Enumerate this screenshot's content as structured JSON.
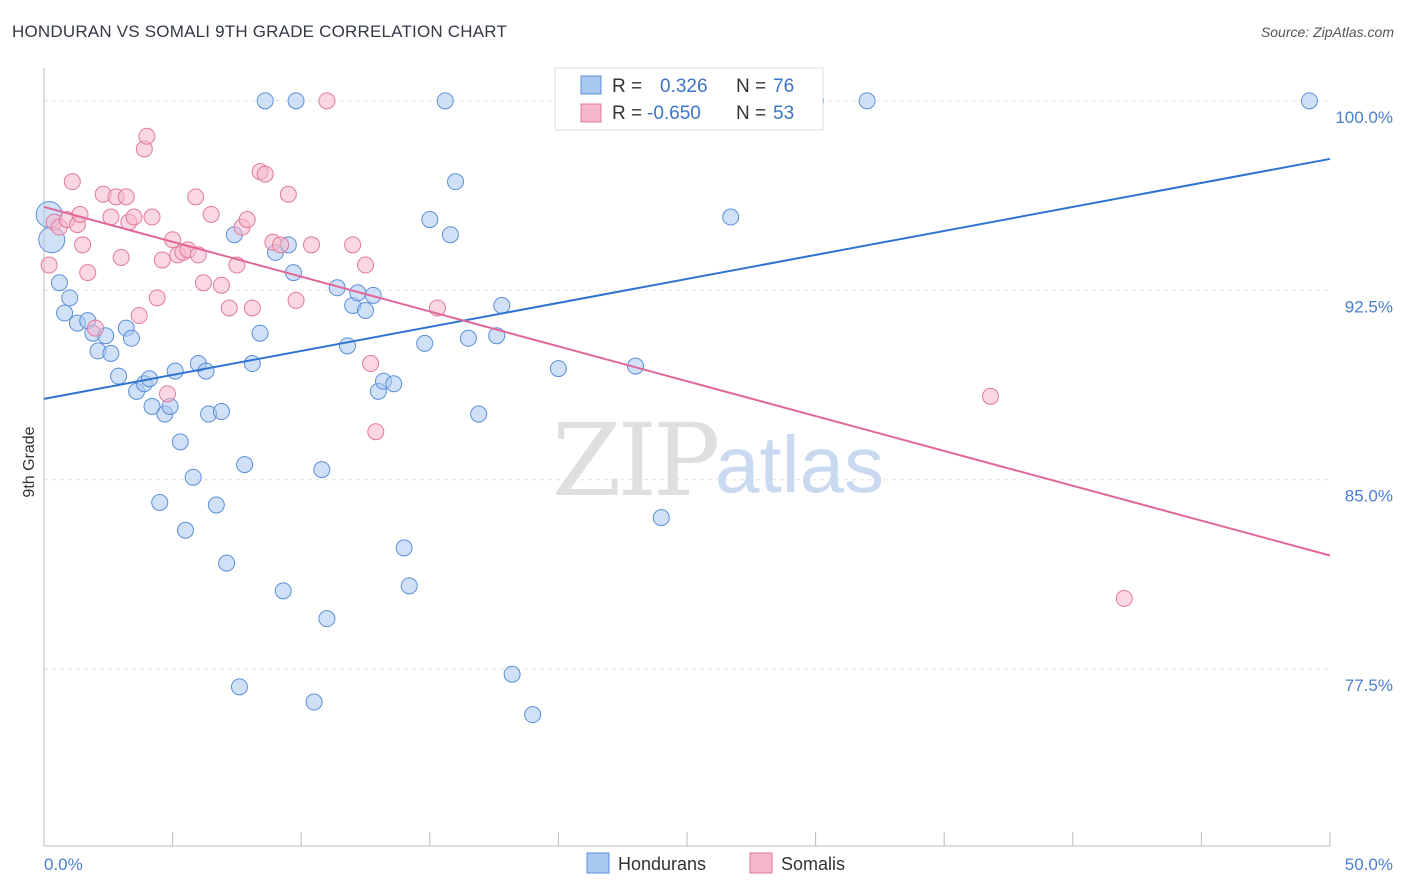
{
  "header": {
    "title": "HONDURAN VS SOMALI 9TH GRADE CORRELATION CHART",
    "source": "Source: ZipAtlas.com"
  },
  "legend_box": {
    "rows": [
      {
        "r_label": "R =",
        "r_value": "0.326",
        "n_label": "N =",
        "n_value": "76",
        "color": "#a9c8f0"
      },
      {
        "r_label": "R =",
        "r_value": "-0.650",
        "n_label": "N =",
        "n_value": "53",
        "color": "#f6b7cb"
      }
    ]
  },
  "bottom_legend": [
    {
      "label": "Hondurans",
      "color": "#a9c8f0"
    },
    {
      "label": "Somalis",
      "color": "#f6b7cb"
    }
  ],
  "watermark": {
    "zip": "ZIP",
    "atlas": "atlas"
  },
  "chart_data": {
    "type": "scatter",
    "title": "HONDURAN VS SOMALI 9TH GRADE CORRELATION CHART",
    "xlabel": "",
    "ylabel": "9th Grade",
    "xlim": [
      0,
      50
    ],
    "ylim": [
      70.5,
      101.3
    ],
    "x_tick_labels": [
      {
        "value": 0,
        "label": "0.0%"
      },
      {
        "value": 50,
        "label": "50.0%"
      }
    ],
    "y_tick_labels": [
      {
        "value": 100,
        "label": "100.0%"
      },
      {
        "value": 92.5,
        "label": "92.5%"
      },
      {
        "value": 85,
        "label": "85.0%"
      },
      {
        "value": 77.5,
        "label": "77.5%"
      }
    ],
    "grid": true,
    "legend_position": "top-center",
    "series": [
      {
        "name": "Hondurans",
        "color": "#a9c8f0",
        "stroke": "#5b8fd6",
        "trend": {
          "x": [
            0,
            50
          ],
          "y": [
            88.2,
            97.7
          ],
          "color": "#2f74d0"
        },
        "points": [
          [
            0.2,
            95.5
          ],
          [
            0.3,
            94.5
          ],
          [
            0.6,
            92.8
          ],
          [
            0.8,
            91.6
          ],
          [
            1.0,
            92.2
          ],
          [
            1.3,
            91.2
          ],
          [
            1.7,
            91.3
          ],
          [
            1.9,
            90.8
          ],
          [
            2.1,
            90.1
          ],
          [
            2.4,
            90.7
          ],
          [
            2.6,
            90.0
          ],
          [
            2.9,
            89.1
          ],
          [
            3.2,
            91.0
          ],
          [
            3.4,
            90.6
          ],
          [
            3.6,
            88.5
          ],
          [
            3.9,
            88.8
          ],
          [
            4.1,
            89.0
          ],
          [
            4.2,
            87.9
          ],
          [
            4.5,
            84.1
          ],
          [
            4.7,
            87.6
          ],
          [
            4.9,
            87.9
          ],
          [
            5.1,
            89.3
          ],
          [
            5.3,
            86.5
          ],
          [
            5.5,
            83.0
          ],
          [
            5.8,
            85.1
          ],
          [
            6.0,
            89.6
          ],
          [
            6.3,
            89.3
          ],
          [
            6.4,
            87.6
          ],
          [
            6.7,
            84.0
          ],
          [
            6.9,
            87.7
          ],
          [
            7.1,
            81.7
          ],
          [
            7.4,
            94.7
          ],
          [
            7.6,
            76.8
          ],
          [
            7.8,
            85.6
          ],
          [
            8.1,
            89.6
          ],
          [
            8.4,
            90.8
          ],
          [
            8.6,
            100.0
          ],
          [
            9.0,
            94.0
          ],
          [
            9.3,
            80.6
          ],
          [
            9.5,
            94.3
          ],
          [
            9.7,
            93.2
          ],
          [
            9.8,
            100.0
          ],
          [
            10.5,
            76.2
          ],
          [
            10.8,
            85.4
          ],
          [
            11.0,
            79.5
          ],
          [
            11.4,
            92.6
          ],
          [
            11.8,
            90.3
          ],
          [
            12.0,
            91.9
          ],
          [
            12.2,
            92.4
          ],
          [
            12.5,
            91.7
          ],
          [
            12.8,
            92.3
          ],
          [
            13.0,
            88.5
          ],
          [
            13.2,
            88.9
          ],
          [
            13.6,
            88.8
          ],
          [
            14.0,
            82.3
          ],
          [
            14.2,
            80.8
          ],
          [
            14.8,
            90.4
          ],
          [
            15.0,
            95.3
          ],
          [
            15.6,
            100.0
          ],
          [
            15.8,
            94.7
          ],
          [
            16.0,
            96.8
          ],
          [
            16.5,
            90.6
          ],
          [
            16.9,
            87.6
          ],
          [
            17.6,
            90.7
          ],
          [
            17.8,
            91.9
          ],
          [
            18.2,
            77.3
          ],
          [
            19.0,
            75.7
          ],
          [
            20.0,
            89.4
          ],
          [
            23.0,
            89.5
          ],
          [
            24.0,
            83.5
          ],
          [
            26.2,
            100.0
          ],
          [
            26.7,
            95.4
          ],
          [
            28.0,
            100.0
          ],
          [
            30.0,
            100.0
          ],
          [
            32.0,
            100.0
          ],
          [
            49.2,
            100.0
          ]
        ]
      },
      {
        "name": "Somalis",
        "color": "#f6b7cb",
        "stroke": "#e07a9c",
        "trend": {
          "x": [
            0,
            50
          ],
          "y": [
            95.8,
            82.0
          ],
          "color": "#e0679a"
        },
        "points": [
          [
            0.2,
            93.5
          ],
          [
            0.4,
            95.2
          ],
          [
            0.6,
            95.0
          ],
          [
            0.9,
            95.3
          ],
          [
            1.1,
            96.8
          ],
          [
            1.3,
            95.1
          ],
          [
            1.5,
            94.3
          ],
          [
            1.7,
            93.2
          ],
          [
            2.0,
            91.0
          ],
          [
            2.3,
            96.3
          ],
          [
            2.6,
            95.4
          ],
          [
            2.8,
            96.2
          ],
          [
            3.0,
            93.8
          ],
          [
            3.3,
            95.2
          ],
          [
            3.5,
            95.4
          ],
          [
            3.7,
            91.5
          ],
          [
            3.9,
            98.1
          ],
          [
            4.0,
            98.6
          ],
          [
            4.2,
            95.4
          ],
          [
            4.4,
            92.2
          ],
          [
            4.6,
            93.7
          ],
          [
            4.8,
            88.4
          ],
          [
            5.0,
            94.5
          ],
          [
            5.2,
            93.9
          ],
          [
            5.4,
            94.0
          ],
          [
            5.6,
            94.1
          ],
          [
            5.9,
            96.2
          ],
          [
            6.2,
            92.8
          ],
          [
            6.5,
            95.5
          ],
          [
            6.9,
            92.7
          ],
          [
            7.2,
            91.8
          ],
          [
            7.5,
            93.5
          ],
          [
            7.7,
            95.0
          ],
          [
            7.9,
            95.3
          ],
          [
            8.1,
            91.8
          ],
          [
            8.4,
            97.2
          ],
          [
            8.6,
            97.1
          ],
          [
            8.9,
            94.4
          ],
          [
            9.2,
            94.3
          ],
          [
            9.5,
            96.3
          ],
          [
            9.8,
            92.1
          ],
          [
            10.4,
            94.3
          ],
          [
            11.0,
            100.0
          ],
          [
            12.5,
            93.5
          ],
          [
            12.7,
            89.6
          ],
          [
            12.9,
            86.9
          ],
          [
            15.3,
            91.8
          ],
          [
            36.8,
            88.3
          ],
          [
            42.0,
            80.3
          ],
          [
            12.0,
            94.3
          ],
          [
            6.0,
            93.9
          ],
          [
            3.2,
            96.2
          ],
          [
            1.4,
            95.5
          ]
        ]
      }
    ]
  }
}
